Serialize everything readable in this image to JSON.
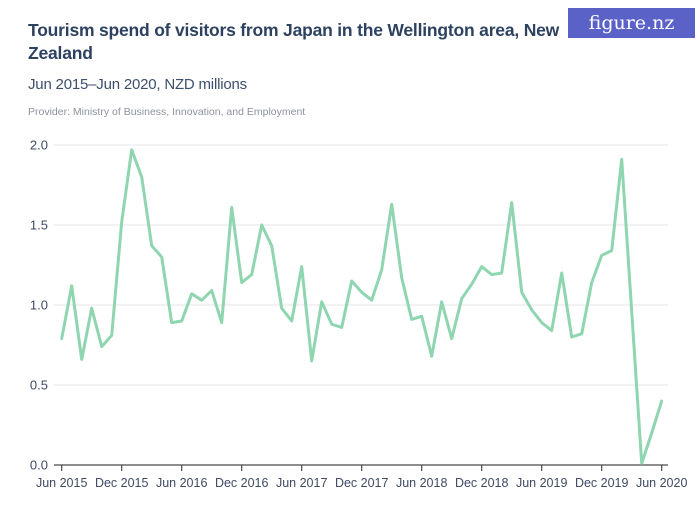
{
  "header": {
    "title": "Tourism spend of visitors from Japan in the Wellington area, New Zealand",
    "subtitle": "Jun 2015–Jun 2020, NZD millions",
    "provider": "Provider: Ministry of Business, Innovation, and Employment"
  },
  "logo": {
    "text": "figure.nz",
    "bg_color": "#5a62c8",
    "text_color": "#ffffff"
  },
  "chart_data": {
    "type": "line",
    "title": "Tourism spend of visitors from Japan in the Wellington area, New Zealand",
    "subtitle": "Jun 2015–Jun 2020, NZD millions",
    "xlabel": "",
    "ylabel": "NZD millions",
    "ylim": [
      0,
      2.0
    ],
    "grid": true,
    "legend": "none",
    "line_color": "#8fd6b0",
    "gridline_color": "#e4e4e4",
    "axis_color": "#4a4a4a",
    "tick_label_color": "#3e4a63",
    "y_ticks": [
      0.0,
      0.5,
      1.0,
      1.5,
      2.0
    ],
    "y_tick_labels": [
      "0.0",
      "0.5",
      "1.0",
      "1.5",
      "2.0"
    ],
    "x_tick_labels": [
      "Jun 2015",
      "Dec 2015",
      "Jun 2016",
      "Dec 2016",
      "Jun 2017",
      "Dec 2017",
      "Jun 2018",
      "Dec 2018",
      "Jun 2019",
      "Dec 2019",
      "Jun 2020"
    ],
    "x": [
      "Jun 2015",
      "Jul 2015",
      "Aug 2015",
      "Sep 2015",
      "Oct 2015",
      "Nov 2015",
      "Dec 2015",
      "Jan 2016",
      "Feb 2016",
      "Mar 2016",
      "Apr 2016",
      "May 2016",
      "Jun 2016",
      "Jul 2016",
      "Aug 2016",
      "Sep 2016",
      "Oct 2016",
      "Nov 2016",
      "Dec 2016",
      "Jan 2017",
      "Feb 2017",
      "Mar 2017",
      "Apr 2017",
      "May 2017",
      "Jun 2017",
      "Jul 2017",
      "Aug 2017",
      "Sep 2017",
      "Oct 2017",
      "Nov 2017",
      "Dec 2017",
      "Jan 2018",
      "Feb 2018",
      "Mar 2018",
      "Apr 2018",
      "May 2018",
      "Jun 2018",
      "Jul 2018",
      "Aug 2018",
      "Sep 2018",
      "Oct 2018",
      "Nov 2018",
      "Dec 2018",
      "Jan 2019",
      "Feb 2019",
      "Mar 2019",
      "Apr 2019",
      "May 2019",
      "Jun 2019",
      "Jul 2019",
      "Aug 2019",
      "Sep 2019",
      "Oct 2019",
      "Nov 2019",
      "Dec 2019",
      "Jan 2020",
      "Feb 2020",
      "Mar 2020",
      "Apr 2020",
      "May 2020",
      "Jun 2020"
    ],
    "values": [
      0.79,
      1.12,
      0.66,
      0.98,
      0.74,
      0.81,
      1.52,
      1.97,
      1.8,
      1.37,
      1.3,
      0.89,
      0.9,
      1.07,
      1.03,
      1.09,
      0.89,
      1.61,
      1.14,
      1.19,
      1.5,
      1.37,
      0.98,
      0.9,
      1.24,
      0.65,
      1.02,
      0.88,
      0.86,
      1.15,
      1.08,
      1.03,
      1.22,
      1.63,
      1.17,
      0.91,
      0.93,
      0.68,
      1.02,
      0.79,
      1.04,
      1.13,
      1.24,
      1.19,
      1.2,
      1.64,
      1.08,
      0.97,
      0.89,
      0.84,
      1.2,
      0.8,
      0.82,
      1.14,
      1.31,
      1.34,
      1.91,
      0.96,
      0.01,
      0.2,
      0.4
    ]
  }
}
